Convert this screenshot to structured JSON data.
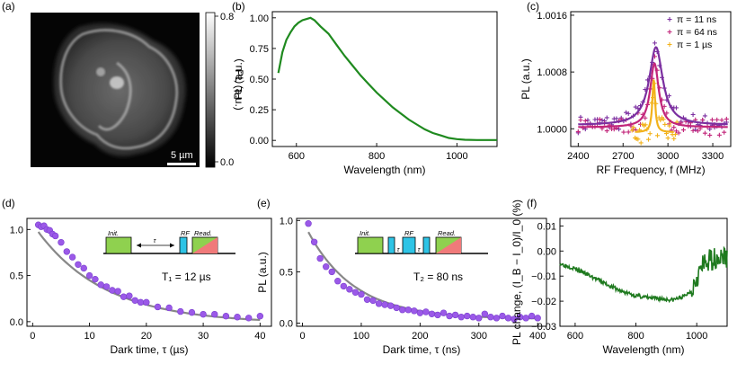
{
  "panels": {
    "a": {
      "label": "(a)",
      "colorbar_label": "PL (a.u.)",
      "colorbar_ticks": [
        "0.8",
        "0.0"
      ],
      "scalebar": "5 µm",
      "colormap": [
        "#000000",
        "#ffffff"
      ]
    },
    "b": {
      "label": "(b)"
    },
    "c": {
      "label": "(c)"
    },
    "d": {
      "label": "(d)",
      "annotation": "T₁ = 12 µs",
      "inset": {
        "init": "Init.",
        "tau": "τ",
        "rf": "RF",
        "read": "Read."
      }
    },
    "e": {
      "label": "(e)",
      "annotation": "T₂ = 80 ns",
      "inset": {
        "init": "Init.",
        "tau": "τ",
        "rf": "RF",
        "read": "Read."
      }
    },
    "f": {
      "label": "(f)"
    }
  },
  "chart_data": [
    {
      "id": "b",
      "type": "line",
      "xlabel": "Wavelength (nm)",
      "ylabel": "PL (a.u.)",
      "xlim": [
        540,
        1100
      ],
      "ylim": [
        -0.05,
        1.05
      ],
      "xticks": [
        {
          "v": 600,
          "t": "600"
        },
        {
          "v": 800,
          "t": "800"
        },
        {
          "v": 1000,
          "t": "1000"
        }
      ],
      "yticks": [
        {
          "v": 0,
          "t": "0.00"
        },
        {
          "v": 0.25,
          "t": "0.25"
        },
        {
          "v": 0.5,
          "t": "0.50"
        },
        {
          "v": 0.75,
          "t": "0.75"
        },
        {
          "v": 1,
          "t": "1.00"
        }
      ],
      "series": [
        {
          "color": "#1f8a1f",
          "x": [
            555,
            565,
            575,
            585,
            595,
            605,
            615,
            625,
            635,
            645,
            660,
            680,
            700,
            720,
            740,
            760,
            780,
            800,
            820,
            840,
            860,
            880,
            900,
            920,
            940,
            960,
            980,
            1000,
            1020,
            1050,
            1100
          ],
          "y": [
            0.55,
            0.72,
            0.82,
            0.88,
            0.93,
            0.96,
            0.98,
            0.99,
            1.0,
            0.98,
            0.93,
            0.87,
            0.78,
            0.69,
            0.61,
            0.53,
            0.46,
            0.39,
            0.33,
            0.27,
            0.22,
            0.17,
            0.13,
            0.09,
            0.06,
            0.04,
            0.02,
            0.01,
            0.005,
            0.003,
            0.003
          ]
        }
      ]
    },
    {
      "id": "c",
      "type": "scatter",
      "xlabel": "RF Frequency, f (MHz)",
      "ylabel": "PL (a.u.)",
      "xlim": [
        2350,
        3420
      ],
      "ylim": [
        0.99975,
        1.00165
      ],
      "xticks": [
        {
          "v": 2400,
          "t": "2400"
        },
        {
          "v": 2700,
          "t": "2700"
        },
        {
          "v": 3000,
          "t": "3000"
        },
        {
          "v": 3300,
          "t": "3300"
        }
      ],
      "yticks": [
        {
          "v": 1.0,
          "t": "1.0000"
        },
        {
          "v": 1.0008,
          "t": "1.0008"
        },
        {
          "v": 1.0016,
          "t": "1.0016"
        }
      ],
      "legend_position": "top-right",
      "series": [
        {
          "name": "π = 11 ns",
          "color": "#7b2fa0",
          "center": 2920,
          "width": 110,
          "base": 1.00005,
          "amp": 0.0011
        },
        {
          "name": "π = 64 ns",
          "color": "#c2257a",
          "center": 2910,
          "width": 70,
          "base": 1.00002,
          "amp": 0.0009
        },
        {
          "name": "π =   1 µs",
          "color": "#f2b21b",
          "center": 2905,
          "width": 22,
          "base": 0.99995,
          "amp": 0.00075
        }
      ]
    },
    {
      "id": "d",
      "type": "scatter",
      "xlabel": "Dark time, τ (µs)",
      "ylabel": "PL (a.u.)",
      "xlim": [
        -1,
        42
      ],
      "ylim": [
        -0.05,
        1.12
      ],
      "xticks": [
        {
          "v": 0,
          "t": "0"
        },
        {
          "v": 10,
          "t": "10"
        },
        {
          "v": 20,
          "t": "20"
        },
        {
          "v": 30,
          "t": "30"
        },
        {
          "v": 40,
          "t": "40"
        }
      ],
      "yticks": [
        {
          "v": 0,
          "t": "0.0"
        },
        {
          "v": 0.5,
          "t": "0.5"
        },
        {
          "v": 1,
          "t": "1.0"
        }
      ],
      "fit": {
        "model": "exp",
        "tau": 12,
        "amp": 1.08,
        "offset": -0.02,
        "color": "#888888"
      },
      "points": {
        "color": "#9b59e8",
        "x": [
          1,
          1.5,
          2,
          2.5,
          3,
          3.5,
          4,
          5,
          6,
          7,
          8,
          9,
          10,
          11,
          12,
          13,
          14,
          15,
          16,
          17,
          18,
          19,
          20,
          22,
          24,
          26,
          28,
          30,
          32,
          34,
          36,
          38,
          40
        ],
        "y": [
          1.05,
          1.03,
          1.04,
          1.0,
          0.99,
          0.95,
          0.93,
          0.86,
          0.76,
          0.7,
          0.62,
          0.58,
          0.5,
          0.46,
          0.4,
          0.38,
          0.34,
          0.33,
          0.27,
          0.28,
          0.23,
          0.21,
          0.21,
          0.16,
          0.15,
          0.11,
          0.1,
          0.08,
          0.08,
          0.06,
          0.05,
          0.04,
          0.06
        ]
      }
    },
    {
      "id": "e",
      "type": "scatter",
      "xlabel": "Dark time, τ (ns)",
      "ylabel": "PL (a.u.)",
      "xlim": [
        -10,
        415
      ],
      "ylim": [
        -0.03,
        1.02
      ],
      "xticks": [
        {
          "v": 0,
          "t": "0"
        },
        {
          "v": 100,
          "t": "100"
        },
        {
          "v": 200,
          "t": "200"
        },
        {
          "v": 300,
          "t": "300"
        },
        {
          "v": 400,
          "t": "400"
        }
      ],
      "yticks": [
        {
          "v": 0,
          "t": "0.0"
        },
        {
          "v": 0.5,
          "t": "0.5"
        },
        {
          "v": 1,
          "t": "1.0"
        }
      ],
      "fit": {
        "model": "exp",
        "tau": 80,
        "amp": 0.96,
        "offset": 0.04,
        "color": "#888888"
      },
      "points": {
        "color": "#9b59e8",
        "x": [
          10,
          20,
          30,
          40,
          50,
          60,
          70,
          80,
          90,
          100,
          110,
          120,
          130,
          140,
          150,
          160,
          170,
          180,
          190,
          200,
          210,
          220,
          230,
          240,
          250,
          260,
          270,
          280,
          290,
          300,
          310,
          320,
          330,
          340,
          350,
          360,
          370,
          380,
          390,
          400
        ],
        "y": [
          0.97,
          0.79,
          0.63,
          0.55,
          0.5,
          0.41,
          0.36,
          0.33,
          0.3,
          0.28,
          0.23,
          0.22,
          0.19,
          0.18,
          0.17,
          0.15,
          0.13,
          0.13,
          0.12,
          0.1,
          0.11,
          0.09,
          0.08,
          0.1,
          0.07,
          0.08,
          0.06,
          0.07,
          0.06,
          0.05,
          0.09,
          0.06,
          0.05,
          0.07,
          0.05,
          0.04,
          0.06,
          0.05,
          0.07,
          0.05
        ]
      }
    },
    {
      "id": "f",
      "type": "line",
      "xlabel": "Wavelength (nm)",
      "ylabel": "PL change, (I_B − I_0)/I_0 (%)",
      "xlim": [
        550,
        1100
      ],
      "ylim": [
        -0.03,
        0.013
      ],
      "xticks": [
        {
          "v": 600,
          "t": "600"
        },
        {
          "v": 800,
          "t": "800"
        },
        {
          "v": 1000,
          "t": "1000"
        }
      ],
      "yticks": [
        {
          "v": -0.03,
          "t": "−0.03"
        },
        {
          "v": -0.02,
          "t": "−0.02"
        },
        {
          "v": -0.01,
          "t": "−0.01"
        },
        {
          "v": 0,
          "t": "0.00"
        },
        {
          "v": 0.01,
          "t": "0.01"
        }
      ],
      "series": [
        {
          "color": "#1f7a1f",
          "x": [
            550,
            600,
            650,
            700,
            750,
            800,
            850,
            880,
            900,
            920,
            940,
            960,
            980,
            990,
            1000,
            1010,
            1020,
            1030,
            1040,
            1050,
            1060,
            1070,
            1080,
            1090,
            1100
          ],
          "y": [
            -0.005,
            -0.007,
            -0.01,
            -0.013,
            -0.016,
            -0.0178,
            -0.0188,
            -0.019,
            -0.0193,
            -0.0195,
            -0.0188,
            -0.018,
            -0.016,
            -0.013,
            -0.01,
            -0.008,
            -0.006,
            -0.005,
            -0.004,
            -0.003,
            -0.003,
            -0.002,
            -0.003,
            -0.002,
            -0.003
          ]
        }
      ]
    }
  ]
}
